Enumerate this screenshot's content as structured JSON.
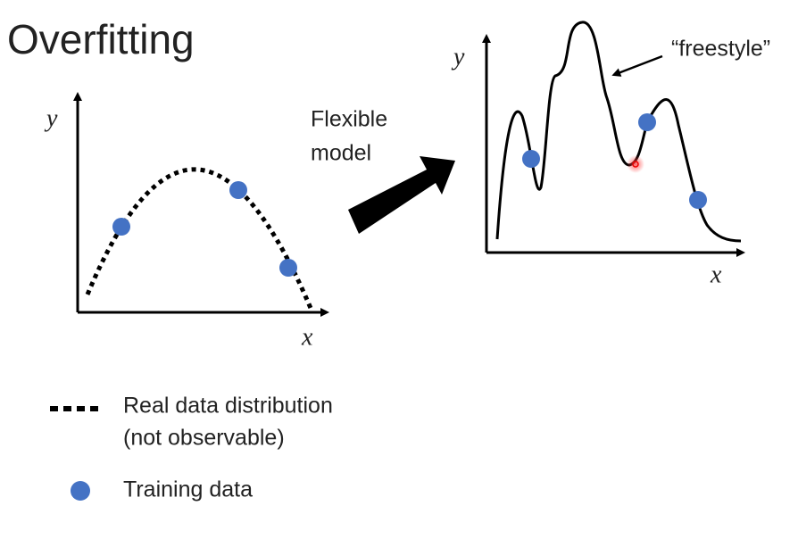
{
  "title": "Overfitting",
  "left_plot": {
    "y_label": "y",
    "x_label": "x"
  },
  "transition": {
    "line1": "Flexible",
    "line2": "model"
  },
  "right_plot": {
    "y_label": "y",
    "x_label": "x",
    "annotation": "“freestyle”"
  },
  "legend": {
    "items": [
      {
        "label": "Real data distribution",
        "sublabel": "(not observable)"
      },
      {
        "label": "Training data"
      }
    ]
  }
}
